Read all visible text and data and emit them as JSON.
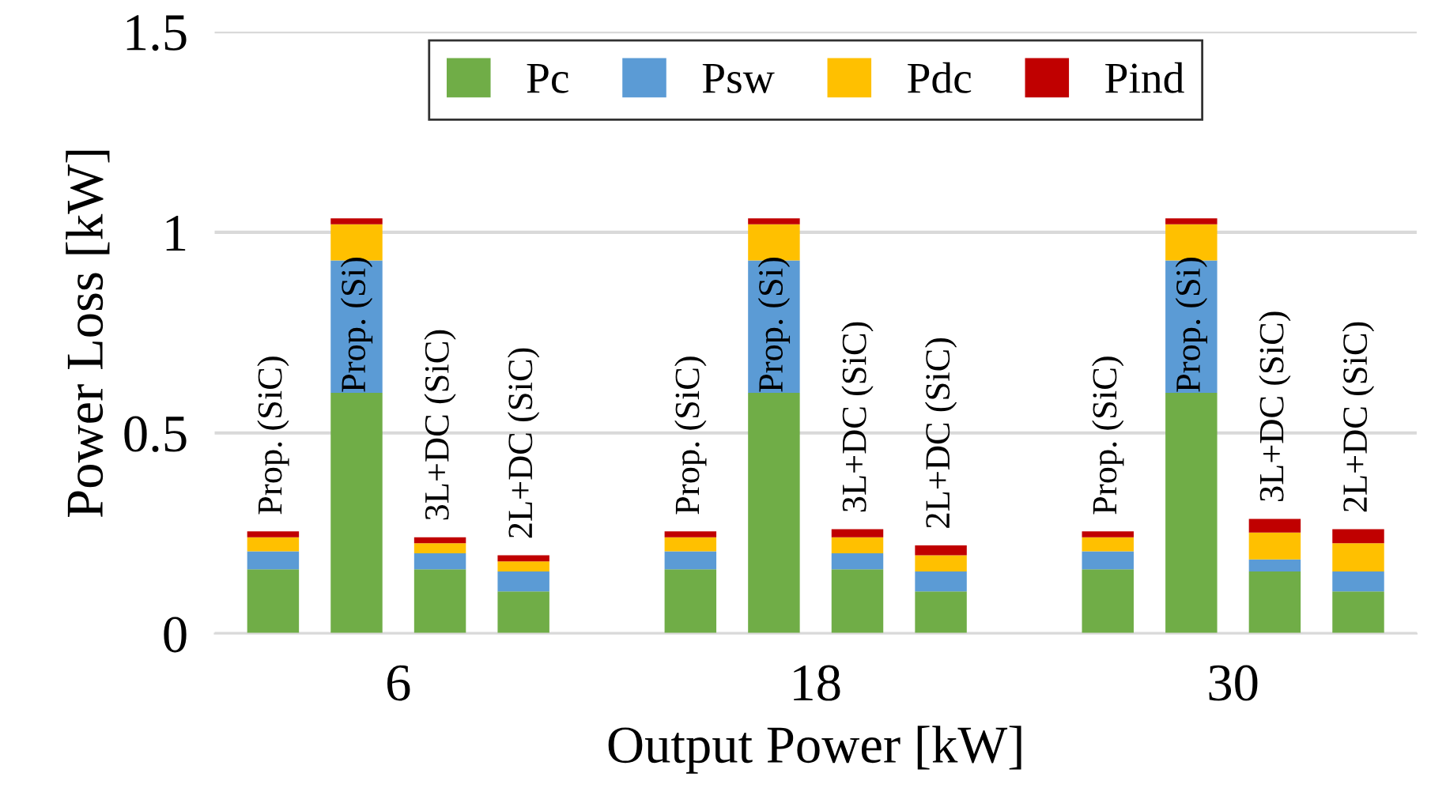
{
  "chart_data": {
    "type": "bar",
    "stacked": true,
    "xlabel": "Output Power [kW]",
    "ylabel": "Power Loss [kW]",
    "categories": [
      "Prop. (SiC)",
      "Prop. (Si)",
      "3L+DC (SiC)",
      "2L+DC (SiC)",
      null,
      "Prop. (SiC)",
      "Prop. (Si)",
      "3L+DC (SiC)",
      "2L+DC (SiC)",
      null,
      "Prop. (SiC)",
      "Prop. (Si)",
      "3L+DC (SiC)",
      "2L+DC (SiC)"
    ],
    "series": [
      {
        "name": "Pc",
        "color": "#70ad47",
        "values": [
          0.16,
          0.6,
          0.16,
          0.105,
          null,
          0.16,
          0.6,
          0.16,
          0.105,
          null,
          0.16,
          0.6,
          0.155,
          0.105
        ]
      },
      {
        "name": "Psw",
        "color": "#5b9bd5",
        "values": [
          0.045,
          0.33,
          0.04,
          0.05,
          null,
          0.045,
          0.33,
          0.04,
          0.05,
          null,
          0.045,
          0.33,
          0.03,
          0.05
        ]
      },
      {
        "name": "Pdc",
        "color": "#ffc000",
        "values": [
          0.035,
          0.09,
          0.025,
          0.025,
          null,
          0.035,
          0.09,
          0.04,
          0.04,
          null,
          0.035,
          0.09,
          0.067,
          0.07
        ]
      },
      {
        "name": "Pind",
        "color": "#c00000",
        "values": [
          0.015,
          0.015,
          0.015,
          0.015,
          null,
          0.015,
          0.015,
          0.02,
          0.025,
          null,
          0.015,
          0.015,
          0.034,
          0.035
        ]
      }
    ],
    "annotations": [
      "6",
      "18",
      "30"
    ],
    "ylim": [
      0,
      1.5
    ],
    "yticks": [
      0,
      0.5,
      1,
      1.5
    ],
    "grid": "y",
    "legend": "top"
  }
}
